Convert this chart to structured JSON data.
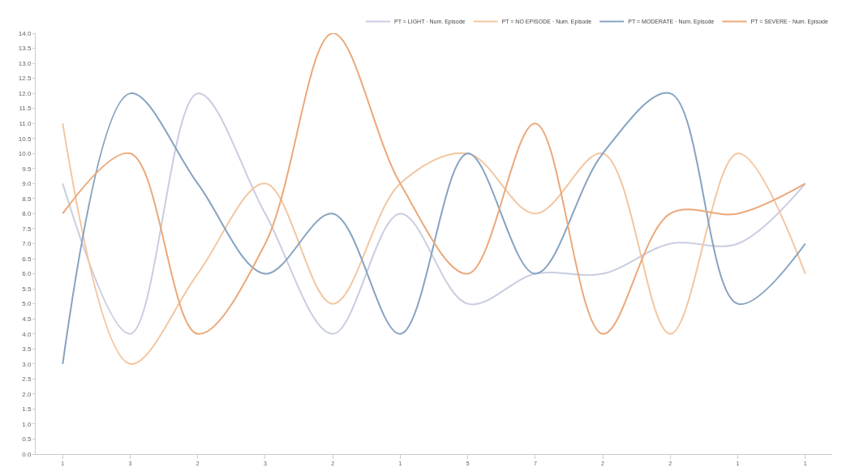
{
  "chart_data": {
    "type": "line",
    "categories": [
      "1",
      "3",
      "2",
      "3",
      "2",
      "1",
      "5",
      "7",
      "2",
      "2",
      "1",
      "1"
    ],
    "series": [
      {
        "name": "PT = LIGHT · Num. Episode",
        "color": "#c9cde0",
        "values": [
          9,
          4,
          12,
          8,
          4,
          8,
          5,
          6,
          6,
          7,
          7,
          9
        ]
      },
      {
        "name": "PT = NO EPISODE · Num. Episode",
        "color": "#f3c6a0",
        "values": [
          11,
          3,
          6,
          9,
          5,
          9,
          10,
          8,
          10,
          4,
          10,
          6
        ]
      },
      {
        "name": "PT = MODERATE · Num. Episode",
        "color": "#86a3c0",
        "values": [
          3,
          12,
          9,
          6,
          8,
          4,
          10,
          6,
          10,
          12,
          5,
          7
        ]
      },
      {
        "name": "PT = SEVERE · Num. Episode",
        "color": "#eba87a",
        "values": [
          8,
          10,
          4,
          7,
          14,
          9,
          6,
          11,
          4,
          8,
          8,
          9
        ]
      }
    ],
    "ylim": [
      0,
      14
    ],
    "yticks": [
      {
        "value": 0,
        "label": "0.0"
      },
      {
        "value": 0.5,
        "label": "0.5"
      },
      {
        "value": 1,
        "label": "1.0"
      },
      {
        "value": 1.5,
        "label": "1.5"
      },
      {
        "value": 2,
        "label": "2.0"
      },
      {
        "value": 2.5,
        "label": "2.5"
      },
      {
        "value": 3,
        "label": "3.0"
      },
      {
        "value": 3.5,
        "label": "3.5"
      },
      {
        "value": 4,
        "label": "4.0"
      },
      {
        "value": 4.5,
        "label": "4.5"
      },
      {
        "value": 5,
        "label": "5.0"
      },
      {
        "value": 5.5,
        "label": "5.5"
      },
      {
        "value": 6,
        "label": "6.0"
      },
      {
        "value": 6.5,
        "label": "6.5"
      },
      {
        "value": 7,
        "label": "7.0"
      },
      {
        "value": 7.5,
        "label": "7.5"
      },
      {
        "value": 8,
        "label": "8.0"
      },
      {
        "value": 8.5,
        "label": "8.5"
      },
      {
        "value": 9,
        "label": "9.0"
      },
      {
        "value": 9.5,
        "label": "9.5"
      },
      {
        "value": 10,
        "label": "10.0"
      },
      {
        "value": 10.5,
        "label": "10.5"
      },
      {
        "value": 11,
        "label": "11.0"
      },
      {
        "value": 11.5,
        "label": "11.5"
      },
      {
        "value": 12,
        "label": "12.0"
      },
      {
        "value": 12.5,
        "label": "12.5"
      },
      {
        "value": 13,
        "label": "13.0"
      },
      {
        "value": 13.5,
        "label": "13.5"
      },
      {
        "value": 14,
        "label": "14.0"
      }
    ],
    "legend": "top right",
    "marker": "none",
    "line_style": "solid"
  }
}
